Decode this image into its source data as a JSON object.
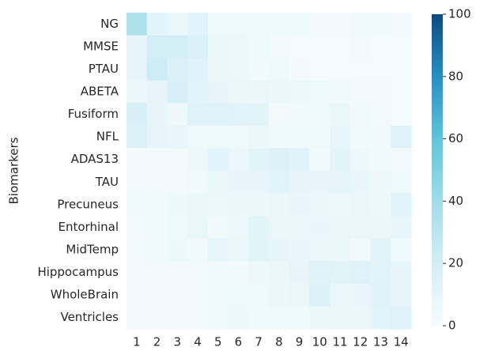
{
  "chart_data": {
    "type": "heatmap",
    "y_label": "Biomarkers",
    "x_categories": [
      "1",
      "2",
      "3",
      "4",
      "5",
      "6",
      "7",
      "8",
      "9",
      "10",
      "11",
      "12",
      "13",
      "14"
    ],
    "y_categories": [
      "NG",
      "MMSE",
      "PTAU",
      "ABETA",
      "Fusiform",
      "NFL",
      "ADAS13",
      "TAU",
      "Precuneus",
      "Entorhinal",
      "MidTemp",
      "Hippocampus",
      "WholeBrain",
      "Ventricles"
    ],
    "values": [
      [
        35,
        12,
        8,
        12,
        5,
        5,
        5,
        5,
        5,
        3,
        3,
        4,
        4,
        3
      ],
      [
        10,
        20,
        20,
        16,
        8,
        6,
        5,
        3,
        2,
        2,
        2,
        3,
        2,
        2
      ],
      [
        10,
        22,
        17,
        13,
        8,
        6,
        4,
        5,
        3,
        2,
        2,
        2,
        2,
        2
      ],
      [
        8,
        10,
        18,
        12,
        10,
        8,
        8,
        7,
        6,
        5,
        4,
        3,
        3,
        2
      ],
      [
        18,
        10,
        6,
        14,
        14,
        12,
        11,
        3,
        4,
        5,
        8,
        4,
        3,
        2
      ],
      [
        15,
        10,
        9,
        5,
        5,
        5,
        7,
        5,
        5,
        5,
        9,
        4,
        4,
        14
      ],
      [
        3,
        3,
        3,
        6,
        12,
        8,
        11,
        15,
        13,
        4,
        11,
        6,
        4,
        3
      ],
      [
        3,
        3,
        3,
        4,
        7,
        10,
        10,
        12,
        10,
        10,
        10,
        9,
        6,
        5
      ],
      [
        4,
        4,
        6,
        7,
        6,
        7,
        7,
        8,
        9,
        7,
        6,
        8,
        6,
        12
      ],
      [
        3,
        4,
        5,
        8,
        4,
        6,
        11,
        8,
        8,
        9,
        8,
        8,
        8,
        9
      ],
      [
        3,
        4,
        6,
        4,
        9,
        8,
        11,
        10,
        9,
        8,
        8,
        4,
        11,
        5
      ],
      [
        3,
        3,
        3,
        3,
        4,
        4,
        6,
        7,
        10,
        14,
        11,
        14,
        12,
        10
      ],
      [
        3,
        3,
        3,
        3,
        4,
        5,
        5,
        7,
        8,
        15,
        8,
        9,
        13,
        10
      ],
      [
        3,
        3,
        3,
        3,
        4,
        6,
        5,
        5,
        5,
        7,
        8,
        8,
        12,
        14
      ]
    ],
    "clim": [
      0,
      100
    ],
    "cticks": [
      0,
      20,
      40,
      60,
      80,
      100
    ],
    "colormap": [
      "#f7fcfe",
      "#d3eef5",
      "#9fdde9",
      "#5cc5dc",
      "#2590c4",
      "#0b4b80"
    ]
  }
}
